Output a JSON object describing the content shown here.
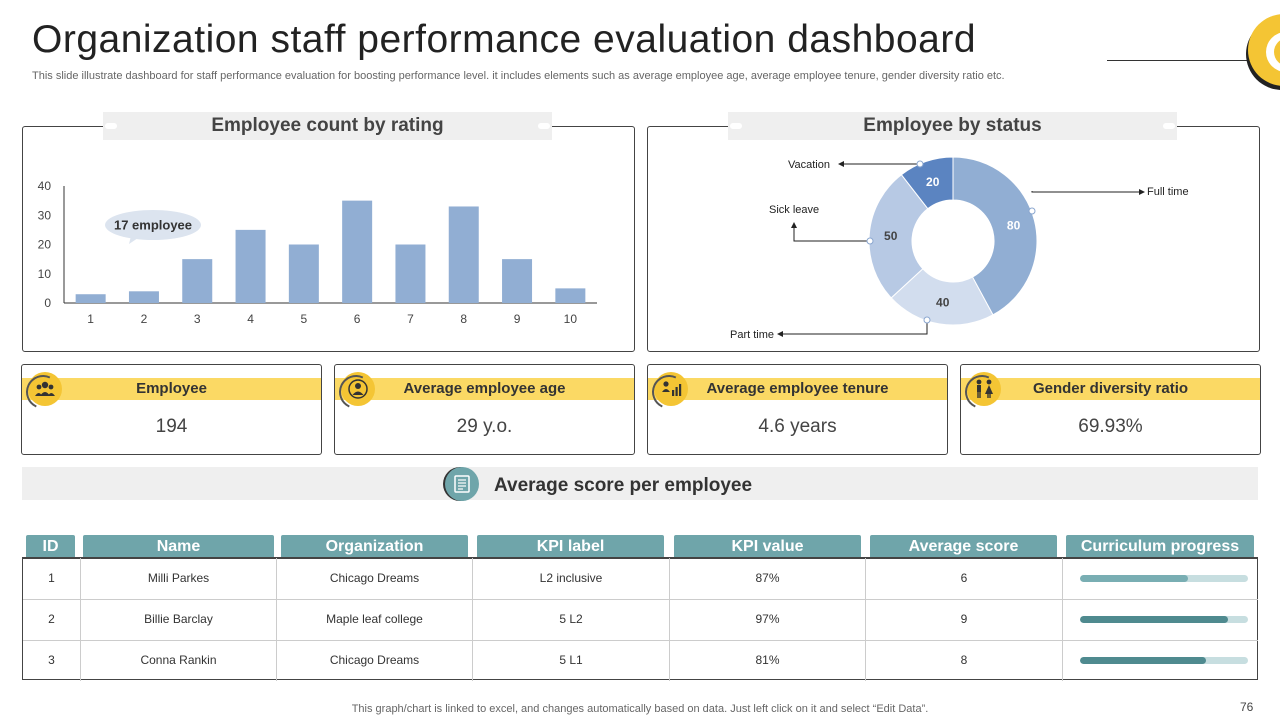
{
  "title": "Organization staff performance evaluation dashboard",
  "subtitle": "This slide illustrate dashboard for staff performance evaluation for boosting performance level. it includes elements such as average employee age, average employee tenure, gender diversity ratio etc.",
  "colors": {
    "bar": "#91aed3",
    "donut_dark": "#5b84c1",
    "donut_mid": "#91aed3",
    "donut_light": "#b7c9e4",
    "donut_lighter": "#d2ddee",
    "accent_yellow": "#fbd964",
    "teal": "#6fa5aa"
  },
  "chart_data": [
    {
      "type": "bar",
      "title": "Employee count by rating",
      "categories": [
        "1",
        "2",
        "3",
        "4",
        "5",
        "6",
        "7",
        "8",
        "9",
        "10"
      ],
      "values": [
        3,
        4,
        15,
        25,
        20,
        35,
        20,
        33,
        15,
        5
      ],
      "y_ticks": [
        "0",
        "10",
        "20",
        "30",
        "40"
      ],
      "ylim": [
        0,
        40
      ],
      "annotation": "17 employee"
    },
    {
      "type": "pie",
      "title": "Employee by status",
      "slices": [
        {
          "label": "Full time",
          "value": 80,
          "value_label": "80"
        },
        {
          "label": "Part time",
          "value": 40,
          "value_label": "40"
        },
        {
          "label": "Sick leave",
          "value": 50,
          "value_label": "50"
        },
        {
          "label": "Vacation",
          "value": 20,
          "value_label": "20"
        }
      ]
    }
  ],
  "kpis": [
    {
      "label": "Employee",
      "value": "194",
      "icon": "people-group-icon"
    },
    {
      "label": "Average employee age",
      "value": "29 y.o.",
      "icon": "person-circle-icon"
    },
    {
      "label": "Average employee tenure",
      "value": "4.6 years",
      "icon": "person-chart-icon"
    },
    {
      "label": "Gender diversity ratio",
      "value": "69.93%",
      "icon": "gender-icon"
    }
  ],
  "score_section": {
    "title": "Average score per employee",
    "icon": "document-icon"
  },
  "table": {
    "columns": [
      "ID",
      "Name",
      "Organization",
      "KPI label",
      "KPI value",
      "Average score",
      "Curriculum progress"
    ],
    "rows": [
      {
        "id": "1",
        "name": "Milli Parkes",
        "organization": "Chicago Dreams",
        "kpi_label": "L2 inclusive",
        "kpi_value": "87%",
        "average_score": "6",
        "progress": 0.64
      },
      {
        "id": "2",
        "name": "Billie Barclay",
        "organization": "Maple leaf college",
        "kpi_label": "5 L2",
        "kpi_value": "97%",
        "average_score": "9",
        "progress": 0.88
      },
      {
        "id": "3",
        "name": "Conna Rankin",
        "organization": "Chicago Dreams",
        "kpi_label": "5 L1",
        "kpi_value": "81%",
        "average_score": "8",
        "progress": 0.75
      }
    ],
    "progress_colors": [
      "#79aeb3",
      "#4f8a8f",
      "#4f8a8f"
    ]
  },
  "footer": "This graph/chart is linked to excel,  and changes automatically based on data. Just left click on it and select “Edit Data”.",
  "page_number": "76"
}
